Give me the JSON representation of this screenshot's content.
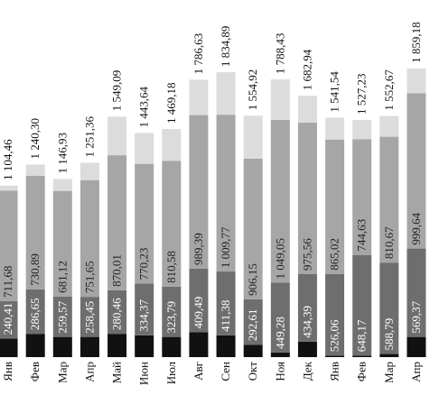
{
  "chart_data": {
    "type": "stacked_bar",
    "categories": [
      "Янв",
      "Фев",
      "Мар",
      "Апр",
      "Май",
      "Июн",
      "Июл",
      "Авг",
      "Сен",
      "Окт",
      "Ноя",
      "Дек",
      "Янв",
      "Фев",
      "Мар",
      "Апр"
    ],
    "ylim": [
      0,
      2300
    ],
    "series": [
      {
        "color": "#111111",
        "values": [
          120,
          150,
          130,
          130,
          150,
          140,
          130,
          160,
          140,
          80,
          30,
          100,
          10,
          10,
          20,
          130
        ]
      },
      {
        "color": "#6e6e6e",
        "values": [
          240.41,
          286.65,
          259.57,
          258.45,
          280.46,
          334.37,
          323.79,
          409.49,
          411.38,
          292.61,
          449.28,
          434.39,
          526.06,
          648.17,
          588.79,
          569.37
        ],
        "value_labels": [
          "240,41",
          "286,65",
          "259,57",
          "258,45",
          "280,46",
          "334,37",
          "323,79",
          "409,49",
          "411,38",
          "292,61",
          "449,28",
          "434,39",
          "526,06",
          "648,17",
          "588,79",
          "569,37"
        ]
      },
      {
        "color": "#a6a6a6",
        "values": [
          711.68,
          730.89,
          681.12,
          751.65,
          870.01,
          770.23,
          810.58,
          989.39,
          1009.77,
          906.15,
          1049.05,
          975.56,
          865.02,
          744.63,
          810.67,
          999.64
        ],
        "value_labels": [
          "711,68",
          "730,89",
          "681,12",
          "751,65",
          "870,01",
          "770,23",
          "810,58",
          "989,39",
          "1 009,77",
          "906,15",
          "1 049,05",
          "975,56",
          "865,02",
          "744,63",
          "810,67",
          "999,64"
        ]
      },
      {
        "color": "#dcdcdc",
        "values": [
          32.37,
          72.76,
          76.24,
          111.26,
          248.62,
          199.04,
          204.81,
          227.75,
          273.74,
          276.16,
          260.1,
          172.99,
          140.46,
          124.43,
          133.21,
          160.17
        ]
      }
    ],
    "totals": {
      "values": [
        1104.46,
        1240.3,
        1146.93,
        1251.36,
        1549.09,
        1443.64,
        1469.18,
        1786.63,
        1834.89,
        1554.92,
        1788.43,
        1682.94,
        1541.54,
        1527.23,
        1552.67,
        1859.18
      ],
      "value_labels": [
        "1 104,46",
        "1 240,30",
        "1 146,93",
        "1 251,36",
        "1 549,09",
        "1 443,64",
        "1 469,18",
        "1 786,63",
        "1 834,89",
        "1 554,92",
        "1 788,43",
        "1 682,94",
        "1 541,54",
        "1 527,23",
        "1 552,67",
        "1 859,18"
      ]
    }
  }
}
